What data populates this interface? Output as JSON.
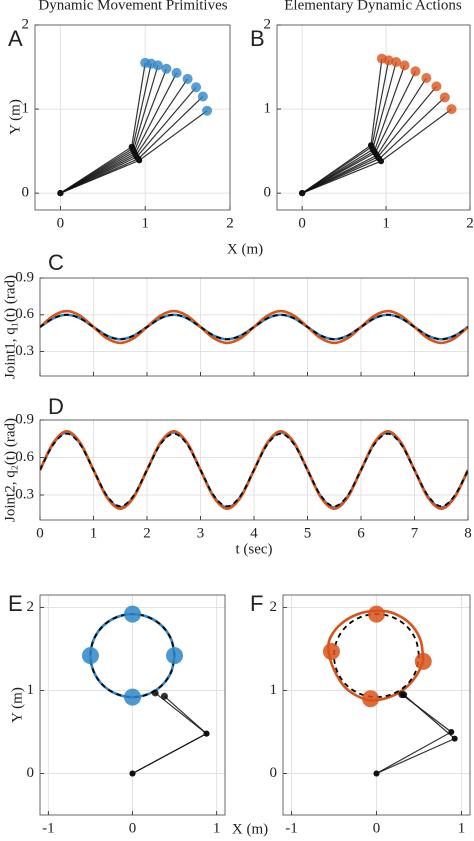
{
  "chart_data": [
    {
      "type": "line",
      "label": "A",
      "title": "Dynamic Movement Primitives",
      "xlabel": "X (m)",
      "ylabel": "Y (m)",
      "xlim": [
        -0.3,
        2
      ],
      "ylim": [
        -0.2,
        2
      ],
      "xticks": [
        0,
        1,
        2
      ],
      "yticks": [
        0,
        1,
        2
      ],
      "grid": true,
      "series": [
        {
          "mode": "arm",
          "color": "#2f86c8",
          "x": [
            0,
            0.84,
            1.0
          ],
          "values": [
            0,
            0.55,
            1.55
          ]
        },
        {
          "mode": "arm",
          "color": "#2f86c8",
          "x": [
            0,
            0.85,
            1.07
          ],
          "values": [
            0,
            0.53,
            1.54
          ]
        },
        {
          "mode": "arm",
          "color": "#2f86c8",
          "x": [
            0,
            0.86,
            1.15
          ],
          "values": [
            0,
            0.51,
            1.52
          ]
        },
        {
          "mode": "arm",
          "color": "#2f86c8",
          "x": [
            0,
            0.87,
            1.25
          ],
          "values": [
            0,
            0.49,
            1.48
          ]
        },
        {
          "mode": "arm",
          "color": "#2f86c8",
          "x": [
            0,
            0.88,
            1.37
          ],
          "values": [
            0,
            0.47,
            1.43
          ]
        },
        {
          "mode": "arm",
          "color": "#2f86c8",
          "x": [
            0,
            0.89,
            1.5
          ],
          "values": [
            0,
            0.45,
            1.36
          ]
        },
        {
          "mode": "arm",
          "color": "#2f86c8",
          "x": [
            0,
            0.9,
            1.6
          ],
          "values": [
            0,
            0.43,
            1.26
          ]
        },
        {
          "mode": "arm",
          "color": "#2f86c8",
          "x": [
            0,
            0.92,
            1.68
          ],
          "values": [
            0,
            0.41,
            1.15
          ]
        },
        {
          "mode": "arm",
          "color": "#2f86c8",
          "x": [
            0,
            0.93,
            1.73
          ],
          "values": [
            0,
            0.39,
            0.98
          ]
        }
      ]
    },
    {
      "type": "line",
      "label": "B",
      "title": "Elementary Dynamic Actions",
      "xlim": [
        -0.3,
        2
      ],
      "ylim": [
        -0.2,
        2
      ],
      "xticks": [
        0,
        1,
        2
      ],
      "yticks": [
        0,
        1,
        2
      ],
      "grid": true,
      "series": [
        {
          "mode": "arm",
          "color": "#d9541a",
          "x": [
            0,
            0.82,
            0.95
          ],
          "values": [
            0,
            0.57,
            1.6
          ]
        },
        {
          "mode": "arm",
          "color": "#d9541a",
          "x": [
            0,
            0.83,
            1.03
          ],
          "values": [
            0,
            0.55,
            1.58
          ]
        },
        {
          "mode": "arm",
          "color": "#d9541a",
          "x": [
            0,
            0.84,
            1.12
          ],
          "values": [
            0,
            0.52,
            1.56
          ]
        },
        {
          "mode": "arm",
          "color": "#d9541a",
          "x": [
            0,
            0.86,
            1.22
          ],
          "values": [
            0,
            0.5,
            1.52
          ]
        },
        {
          "mode": "arm",
          "color": "#d9541a",
          "x": [
            0,
            0.87,
            1.35
          ],
          "values": [
            0,
            0.48,
            1.45
          ]
        },
        {
          "mode": "arm",
          "color": "#d9541a",
          "x": [
            0,
            0.89,
            1.48
          ],
          "values": [
            0,
            0.45,
            1.37
          ]
        },
        {
          "mode": "arm",
          "color": "#d9541a",
          "x": [
            0,
            0.9,
            1.6
          ],
          "values": [
            0,
            0.43,
            1.27
          ]
        },
        {
          "mode": "arm",
          "color": "#d9541a",
          "x": [
            0,
            0.92,
            1.7
          ],
          "values": [
            0,
            0.41,
            1.14
          ]
        },
        {
          "mode": "arm",
          "color": "#d9541a",
          "x": [
            0,
            0.94,
            1.78
          ],
          "values": [
            0,
            0.38,
            1.0
          ]
        }
      ]
    },
    {
      "type": "line",
      "label": "C",
      "ylabel": "Joint1, q₁(t) (rad)",
      "xlim": [
        0,
        8
      ],
      "ylim": [
        0.1,
        0.9
      ],
      "xticks": [
        0,
        1,
        2,
        3,
        4,
        5,
        6,
        7,
        8
      ],
      "xtick_labels": false,
      "yticks": [
        0.3,
        0.6,
        0.9
      ],
      "grid": true,
      "x": [
        0,
        0.25,
        0.5,
        0.75,
        1,
        1.25,
        1.5,
        1.75,
        2,
        2.25,
        2.5,
        2.75,
        3,
        3.25,
        3.5,
        3.75,
        4,
        4.25,
        4.5,
        4.75,
        5,
        5.25,
        5.5,
        5.75,
        6,
        6.25,
        6.5,
        6.75,
        7,
        7.25,
        7.5,
        7.75,
        8
      ],
      "series": [
        {
          "mode": "line",
          "color": "#2f86c8",
          "values": [
            0.5,
            0.571,
            0.6,
            0.571,
            0.5,
            0.429,
            0.4,
            0.429,
            0.5,
            0.571,
            0.6,
            0.571,
            0.5,
            0.429,
            0.4,
            0.429,
            0.5,
            0.571,
            0.6,
            0.571,
            0.5,
            0.429,
            0.4,
            0.429,
            0.5,
            0.571,
            0.6,
            0.571,
            0.5,
            0.429,
            0.4,
            0.429,
            0.5
          ]
        },
        {
          "mode": "line",
          "color": "#d9541a",
          "values": [
            0.5,
            0.592,
            0.63,
            0.592,
            0.5,
            0.408,
            0.37,
            0.408,
            0.5,
            0.592,
            0.63,
            0.592,
            0.5,
            0.408,
            0.37,
            0.408,
            0.5,
            0.592,
            0.63,
            0.592,
            0.5,
            0.408,
            0.37,
            0.408,
            0.5,
            0.592,
            0.63,
            0.592,
            0.5,
            0.408,
            0.37,
            0.408,
            0.5
          ]
        },
        {
          "mode": "dashed",
          "color": "#000000",
          "values": [
            0.5,
            0.571,
            0.6,
            0.571,
            0.5,
            0.429,
            0.4,
            0.429,
            0.5,
            0.571,
            0.6,
            0.571,
            0.5,
            0.429,
            0.4,
            0.429,
            0.5,
            0.571,
            0.6,
            0.571,
            0.5,
            0.429,
            0.4,
            0.429,
            0.5,
            0.571,
            0.6,
            0.571,
            0.5,
            0.429,
            0.4,
            0.429,
            0.5
          ]
        }
      ]
    },
    {
      "type": "line",
      "label": "D",
      "xlabel": "t (sec)",
      "ylabel": "Joint2, q₂(t) (rad)",
      "xlim": [
        0,
        8
      ],
      "ylim": [
        0.1,
        0.9
      ],
      "xticks": [
        0,
        1,
        2,
        3,
        4,
        5,
        6,
        7,
        8
      ],
      "yticks": [
        0.3,
        0.6,
        0.9
      ],
      "grid": true,
      "x": [
        0,
        0.25,
        0.5,
        0.75,
        1,
        1.25,
        1.5,
        1.75,
        2,
        2.25,
        2.5,
        2.75,
        3,
        3.25,
        3.5,
        3.75,
        4,
        4.25,
        4.5,
        4.75,
        5,
        5.25,
        5.5,
        5.75,
        6,
        6.25,
        6.5,
        6.75,
        7,
        7.25,
        7.5,
        7.75,
        8
      ],
      "series": [
        {
          "mode": "line",
          "color": "#2f86c8",
          "values": [
            0.5,
            0.712,
            0.8,
            0.712,
            0.5,
            0.288,
            0.2,
            0.288,
            0.5,
            0.712,
            0.8,
            0.712,
            0.5,
            0.288,
            0.2,
            0.288,
            0.5,
            0.712,
            0.8,
            0.712,
            0.5,
            0.288,
            0.2,
            0.288,
            0.5,
            0.712,
            0.8,
            0.712,
            0.5,
            0.288,
            0.2,
            0.288,
            0.5
          ]
        },
        {
          "mode": "line",
          "color": "#d9541a",
          "values": [
            0.5,
            0.719,
            0.81,
            0.719,
            0.5,
            0.281,
            0.19,
            0.281,
            0.5,
            0.719,
            0.81,
            0.719,
            0.5,
            0.281,
            0.19,
            0.281,
            0.5,
            0.719,
            0.81,
            0.719,
            0.5,
            0.281,
            0.19,
            0.281,
            0.5,
            0.719,
            0.81,
            0.719,
            0.5,
            0.281,
            0.19,
            0.281,
            0.5
          ]
        },
        {
          "mode": "dashed",
          "color": "#000000",
          "values": [
            0.5,
            0.705,
            0.79,
            0.705,
            0.5,
            0.295,
            0.21,
            0.295,
            0.5,
            0.705,
            0.79,
            0.705,
            0.5,
            0.295,
            0.21,
            0.295,
            0.5,
            0.705,
            0.79,
            0.705,
            0.5,
            0.295,
            0.21,
            0.295,
            0.5,
            0.705,
            0.79,
            0.705,
            0.5,
            0.295,
            0.21,
            0.295,
            0.5
          ]
        }
      ]
    },
    {
      "type": "line",
      "label": "E",
      "xlabel": "X (m)",
      "ylabel": "Y (m)",
      "xlim": [
        -1.1,
        1.1
      ],
      "ylim": [
        -0.5,
        2.15
      ],
      "xticks": [
        -1,
        0,
        1
      ],
      "yticks": [
        0,
        1,
        2
      ],
      "grid": true,
      "series": [
        {
          "mode": "line",
          "color": "#2f86c8",
          "x": [
            0.5,
            0.462,
            0.354,
            0.191,
            0,
            -0.191,
            -0.354,
            -0.462,
            -0.5,
            -0.462,
            -0.354,
            -0.191,
            0,
            0.191,
            0.354,
            0.462,
            0.5
          ],
          "values": [
            1.42,
            1.611,
            1.774,
            1.882,
            1.92,
            1.882,
            1.774,
            1.611,
            1.42,
            1.229,
            1.066,
            0.958,
            0.92,
            0.958,
            1.066,
            1.229,
            1.42
          ]
        },
        {
          "mode": "dashed",
          "color": "#000000",
          "x": [
            0.5,
            0.462,
            0.354,
            0.191,
            0,
            -0.191,
            -0.354,
            -0.462,
            -0.5,
            -0.462,
            -0.354,
            -0.191,
            0,
            0.191,
            0.354,
            0.462,
            0.5
          ],
          "values": [
            1.42,
            1.611,
            1.774,
            1.882,
            1.92,
            1.882,
            1.774,
            1.611,
            1.42,
            1.229,
            1.066,
            0.958,
            0.92,
            0.958,
            1.066,
            1.229,
            1.42
          ]
        },
        {
          "mode": "marker",
          "color": "#2f86c8",
          "x": [
            0,
            -0.5,
            0.5,
            0
          ],
          "values": [
            1.92,
            1.42,
            1.42,
            0.92
          ]
        },
        {
          "mode": "arm",
          "color": "#000000",
          "x": [
            0,
            0.88,
            0.27
          ],
          "values": [
            0,
            0.48,
            0.97
          ]
        },
        {
          "mode": "arm",
          "color": "#000000",
          "x": [
            0,
            0.88,
            0.38
          ],
          "values": [
            0,
            0.48,
            0.93
          ]
        }
      ]
    },
    {
      "type": "line",
      "label": "F",
      "xlim": [
        -1.1,
        1.1
      ],
      "ylim": [
        -0.5,
        2.15
      ],
      "xticks": [
        -1,
        0,
        1
      ],
      "yticks": [
        0,
        1,
        2
      ],
      "grid": true,
      "series": [
        {
          "mode": "line",
          "color": "#d9541a",
          "x": [
            0.55,
            0.52,
            0.4,
            0.2,
            0,
            -0.22,
            -0.42,
            -0.55,
            -0.56,
            -0.5,
            -0.38,
            -0.22,
            -0.06,
            0.15,
            0.33,
            0.47,
            0.55
          ],
          "values": [
            1.35,
            1.6,
            1.8,
            1.93,
            1.96,
            1.92,
            1.8,
            1.62,
            1.45,
            1.25,
            1.05,
            0.93,
            0.88,
            0.92,
            1.02,
            1.18,
            1.35
          ]
        },
        {
          "mode": "dashed",
          "color": "#000000",
          "x": [
            0.5,
            0.462,
            0.354,
            0.191,
            0,
            -0.191,
            -0.354,
            -0.462,
            -0.5,
            -0.462,
            -0.354,
            -0.191,
            0,
            0.191,
            0.354,
            0.462,
            0.5
          ],
          "values": [
            1.42,
            1.611,
            1.774,
            1.882,
            1.92,
            1.882,
            1.774,
            1.611,
            1.42,
            1.229,
            1.066,
            0.958,
            0.92,
            0.958,
            1.066,
            1.229,
            1.42
          ]
        },
        {
          "mode": "marker",
          "color": "#d9541a",
          "x": [
            0,
            -0.53,
            0.55,
            -0.07
          ],
          "values": [
            1.92,
            1.47,
            1.35,
            0.9
          ]
        },
        {
          "mode": "arm",
          "color": "#000000",
          "x": [
            0,
            0.88,
            0.3
          ],
          "values": [
            0,
            0.5,
            0.95
          ]
        },
        {
          "mode": "arm",
          "color": "#000000",
          "x": [
            0,
            0.92,
            0.32
          ],
          "values": [
            0,
            0.42,
            0.95
          ]
        }
      ]
    }
  ]
}
